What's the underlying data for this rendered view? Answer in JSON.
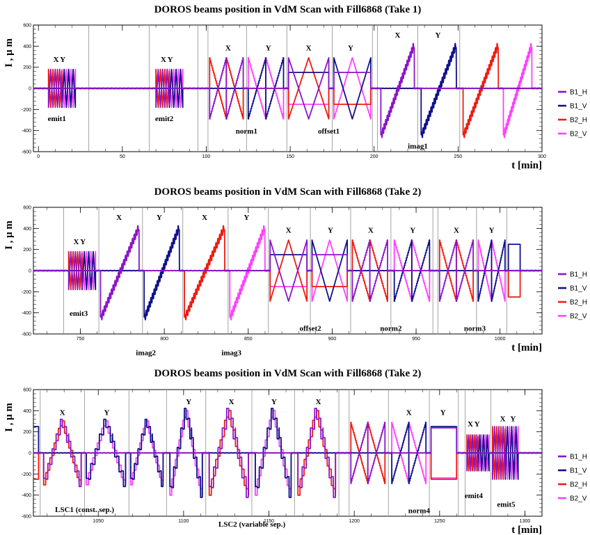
{
  "colors": {
    "B1_H": "#8a14c8",
    "B1_V": "#10108a",
    "B2_H": "#ee1a10",
    "B2_V": "#ff40ff",
    "divider": "#9a9a9a"
  },
  "chart_data": [
    {
      "type": "line",
      "title": "DOROS beams position in VdM Scan with Fill6868 (Take 1)",
      "xlabel": "t [min]",
      "ylabel": "I , μ m",
      "xlim": [
        -3,
        300
      ],
      "ylim": [
        -600,
        600
      ],
      "xticks": [
        0,
        50,
        100,
        150,
        200,
        250,
        300
      ],
      "yticks": [
        -600,
        -400,
        -200,
        0,
        200,
        400,
        600
      ],
      "legend": [
        "B1_H",
        "B1_V",
        "B2_H",
        "B2_V"
      ],
      "dividers": [
        30,
        66,
        95,
        101,
        124,
        148,
        175,
        199,
        202,
        226,
        251
      ],
      "annotations": [
        {
          "text": "X",
          "x": 10.5,
          "y": 250
        },
        {
          "text": "Y",
          "x": 14.5,
          "y": 250
        },
        {
          "text": "emit1",
          "x": 11,
          "y": -310
        },
        {
          "text": "X",
          "x": 74.5,
          "y": 250
        },
        {
          "text": "Y",
          "x": 78.5,
          "y": 250
        },
        {
          "text": "emit2",
          "x": 75,
          "y": -310
        },
        {
          "text": "X",
          "x": 113,
          "y": 360
        },
        {
          "text": "Y",
          "x": 137,
          "y": 360
        },
        {
          "text": "norm1",
          "x": 124,
          "y": -430
        },
        {
          "text": "X",
          "x": 161,
          "y": 360
        },
        {
          "text": "Y",
          "x": 186,
          "y": 360
        },
        {
          "text": "offset1",
          "x": 173,
          "y": -430
        },
        {
          "text": "X",
          "x": 214,
          "y": 480
        },
        {
          "text": "Y",
          "x": 238,
          "y": 480
        },
        {
          "text": "imag1",
          "x": 226,
          "y": -570
        }
      ],
      "segments": [
        {
          "kind": "xy",
          "start": 6,
          "end": 22,
          "a": 180
        },
        {
          "kind": "xy",
          "start": 70,
          "end": 86,
          "a": 180
        },
        {
          "kind": "norm",
          "start": 102,
          "end": 122,
          "ax": "H",
          "a": 290
        },
        {
          "kind": "norm",
          "start": 125,
          "end": 146,
          "ax": "V",
          "a": 290
        },
        {
          "kind": "offset",
          "start": 149,
          "end": 173,
          "ax": "H",
          "a": 290
        },
        {
          "kind": "offset",
          "start": 176,
          "end": 198,
          "ax": "V",
          "a": 290
        },
        {
          "kind": "imag",
          "start": 204,
          "end": 224,
          "beam": "B1_H",
          "a": 440
        },
        {
          "kind": "imag",
          "start": 228,
          "end": 249,
          "beam": "B1_V",
          "a": 440
        },
        {
          "kind": "imag",
          "start": 253,
          "end": 274,
          "beam": "B2_H",
          "a": 440
        },
        {
          "kind": "imag",
          "start": 277,
          "end": 294,
          "beam": "B2_V",
          "a": 440
        }
      ]
    },
    {
      "type": "line",
      "title": "DOROS beams position in VdM Scan with Fill6868 (Take 2)",
      "xlabel": "t [min]",
      "ylabel": "I , μ m",
      "xlim": [
        722,
        1025
      ],
      "ylim": [
        -600,
        600
      ],
      "xticks": [
        750,
        800,
        850,
        900,
        950,
        1000
      ],
      "yticks": [
        -600,
        -400,
        -200,
        0,
        200,
        400,
        600
      ],
      "legend": [
        "B1_H",
        "B1_V",
        "B2_H",
        "B2_V"
      ],
      "dividers": [
        740,
        761,
        787,
        811,
        838,
        862,
        887,
        911,
        935,
        960,
        963,
        986,
        1004
      ],
      "annotations": [
        {
          "text": "X",
          "x": 747.5,
          "y": 250
        },
        {
          "text": "Y",
          "x": 751.5,
          "y": 250
        },
        {
          "text": "emit3",
          "x": 749,
          "y": -430
        },
        {
          "text": "X",
          "x": 773,
          "y": 480
        },
        {
          "text": "Y",
          "x": 797,
          "y": 480
        },
        {
          "text": "imag2",
          "x": 789,
          "y": -800
        },
        {
          "text": "X",
          "x": 824,
          "y": 480
        },
        {
          "text": "Y",
          "x": 849,
          "y": 480
        },
        {
          "text": "imag3",
          "x": 840,
          "y": -800
        },
        {
          "text": "X",
          "x": 874,
          "y": 360
        },
        {
          "text": "Y",
          "x": 899,
          "y": 360
        },
        {
          "text": "offset2",
          "x": 887,
          "y": -570
        },
        {
          "text": "X",
          "x": 923,
          "y": 360
        },
        {
          "text": "Y",
          "x": 948,
          "y": 360
        },
        {
          "text": "norm2",
          "x": 935,
          "y": -570
        },
        {
          "text": "X",
          "x": 974,
          "y": 360
        },
        {
          "text": "Y",
          "x": 995,
          "y": 360
        },
        {
          "text": "norm3",
          "x": 985,
          "y": -570
        }
      ],
      "segments": [
        {
          "kind": "xy",
          "start": 743,
          "end": 759,
          "a": 180
        },
        {
          "kind": "imag",
          "start": 762,
          "end": 785,
          "beam": "B1_H",
          "a": 440
        },
        {
          "kind": "imag",
          "start": 788,
          "end": 809,
          "beam": "B1_V",
          "a": 440
        },
        {
          "kind": "imag",
          "start": 812,
          "end": 836,
          "beam": "B2_H",
          "a": 440
        },
        {
          "kind": "imag",
          "start": 839,
          "end": 860,
          "beam": "B2_V",
          "a": 440
        },
        {
          "kind": "offset",
          "start": 863,
          "end": 885,
          "ax": "H",
          "a": 290
        },
        {
          "kind": "offset",
          "start": 888,
          "end": 909,
          "ax": "V",
          "a": 290
        },
        {
          "kind": "norm",
          "start": 912,
          "end": 933,
          "ax": "H",
          "a": 290
        },
        {
          "kind": "norm",
          "start": 937,
          "end": 958,
          "ax": "V",
          "a": 290
        },
        {
          "kind": "norm",
          "start": 964,
          "end": 984,
          "ax": "H",
          "a": 290
        },
        {
          "kind": "norm",
          "start": 987,
          "end": 1003,
          "ax": "V",
          "a": 290
        },
        {
          "kind": "end",
          "start": 1005,
          "end": 1012,
          "a": 250
        }
      ]
    },
    {
      "type": "line",
      "title": "DOROS beams position in VdM Scan with Fill6868 (Take 2)",
      "xlabel": "t [min]",
      "ylabel": "I , μ m",
      "xlim": [
        1012,
        1310
      ],
      "ylim": [
        -600,
        600
      ],
      "xticks": [
        1050,
        1100,
        1150,
        1200,
        1250,
        1300
      ],
      "yticks": [
        -600,
        -400,
        -200,
        0,
        200,
        400,
        600
      ],
      "legend": [
        "B1_H",
        "B1_V",
        "B2_H",
        "B2_V"
      ],
      "dividers": [
        1016,
        1042,
        1068,
        1090,
        1113,
        1140,
        1165,
        1191,
        1197,
        1220,
        1244,
        1261,
        1265,
        1280
      ],
      "annotations": [
        {
          "text": "X",
          "x": 1029,
          "y": 360
        },
        {
          "text": "Y",
          "x": 1055,
          "y": 360
        },
        {
          "text": "LSC1 (const. sep.)",
          "x": 1042,
          "y": -560
        },
        {
          "text": "Y",
          "x": 1103,
          "y": 460
        },
        {
          "text": "X",
          "x": 1128,
          "y": 460
        },
        {
          "text": "LSC2 (variable sep.)",
          "x": 1140,
          "y": -700
        },
        {
          "text": "Y",
          "x": 1153,
          "y": 460
        },
        {
          "text": "X",
          "x": 1179,
          "y": 460
        },
        {
          "text": "X",
          "x": 1232,
          "y": 360
        },
        {
          "text": "Y",
          "x": 1252,
          "y": 360
        },
        {
          "text": "norm4",
          "x": 1238,
          "y": -570
        },
        {
          "text": "X",
          "x": 1268,
          "y": 250
        },
        {
          "text": "Y",
          "x": 1272,
          "y": 250
        },
        {
          "text": "emit4",
          "x": 1270,
          "y": -430
        },
        {
          "text": "X",
          "x": 1287,
          "y": 300
        },
        {
          "text": "Y",
          "x": 1293,
          "y": 300
        },
        {
          "text": "emit5",
          "x": 1289,
          "y": -510
        }
      ],
      "segments": [
        {
          "kind": "start",
          "start": 1012,
          "end": 1015,
          "a": 250
        },
        {
          "kind": "lsc",
          "start": 1018,
          "end": 1040,
          "ax": "H",
          "a": 280,
          "steps": 9
        },
        {
          "kind": "lsc",
          "start": 1043,
          "end": 1066,
          "ax": "V",
          "a": 280,
          "steps": 9
        },
        {
          "kind": "lsc",
          "start": 1069,
          "end": 1088,
          "ax": "V",
          "a": 280,
          "steps": 9
        },
        {
          "kind": "lsc",
          "start": 1092,
          "end": 1111,
          "ax": "V",
          "a": 370,
          "steps": 9
        },
        {
          "kind": "lsc",
          "start": 1115,
          "end": 1138,
          "ax": "H",
          "a": 370,
          "steps": 9
        },
        {
          "kind": "lsc",
          "start": 1142,
          "end": 1163,
          "ax": "V",
          "a": 370,
          "steps": 9
        },
        {
          "kind": "lsc",
          "start": 1167,
          "end": 1189,
          "ax": "H",
          "a": 370,
          "steps": 9
        },
        {
          "kind": "norm",
          "start": 1198,
          "end": 1218,
          "ax": "H",
          "a": 290
        },
        {
          "kind": "norm",
          "start": 1222,
          "end": 1242,
          "ax": "V",
          "a": 290
        },
        {
          "kind": "box",
          "start": 1245,
          "end": 1260,
          "a": 250
        },
        {
          "kind": "xy",
          "start": 1266,
          "end": 1279,
          "a": 170
        },
        {
          "kind": "xy",
          "start": 1281,
          "end": 1296,
          "a": 250
        }
      ]
    }
  ]
}
